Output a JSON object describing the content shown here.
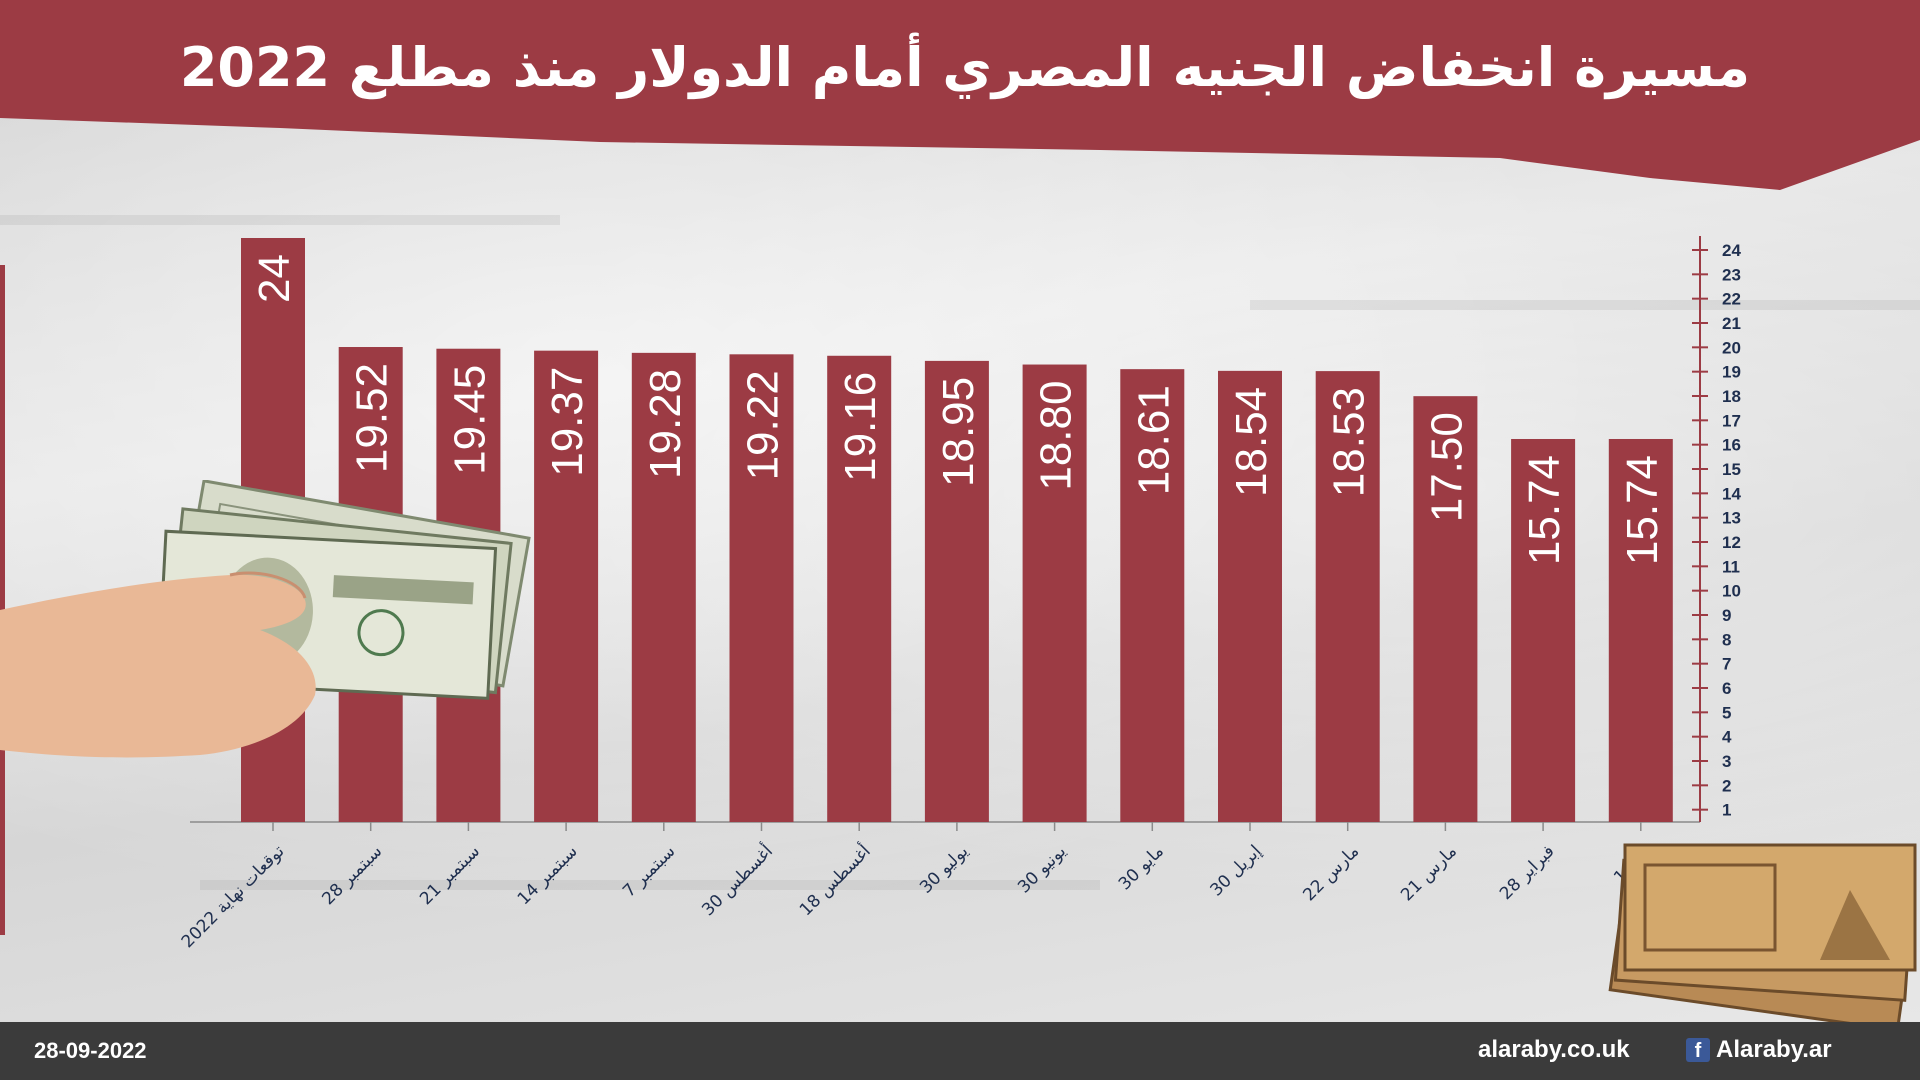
{
  "header": {
    "title": "مسيرة انخفاض الجنيه المصري أمام الدولار منذ مطلع 2022"
  },
  "footer": {
    "date": "28-09-2022",
    "site": "alaraby.co.uk",
    "facebook_handle": "Alaraby.ar"
  },
  "colors": {
    "bar": "#9c3b44",
    "banner": "#9c3b44",
    "footer": "#3b3b3b",
    "label_text": "#1f2f4f"
  },
  "icons": [
    "hand-with-dollars-image",
    "egyptian-pound-notes-image",
    "facebook-icon"
  ],
  "chart_data": {
    "type": "bar",
    "title": "مسيرة انخفاض الجنيه المصري أمام الدولار منذ مطلع 2022",
    "categories": [
      "توقعات نهاية 2022",
      "28 سبتمبر",
      "21 سبتمبر",
      "14 سبتمبر",
      "7 سبتمبر",
      "30 أغسطس",
      "18 أغسطس",
      "30 يوليو",
      "30 يونيو",
      "30 مايو",
      "30 إبريل",
      "22 مارس",
      "21 مارس",
      "28 فبراير",
      "1 يناير"
    ],
    "values": [
      24,
      19.52,
      19.45,
      19.37,
      19.28,
      19.22,
      19.16,
      18.95,
      18.8,
      18.61,
      18.54,
      18.53,
      17.5,
      15.74,
      15.74
    ],
    "value_labels": [
      "24",
      "19.52",
      "19.45",
      "19.37",
      "19.28",
      "19.22",
      "19.16",
      "18.95",
      "18.80",
      "18.61",
      "18.54",
      "18.53",
      "17.50",
      "15.74",
      "15.74"
    ],
    "ylim": [
      0,
      24
    ],
    "yticks": [
      1,
      2,
      3,
      4,
      5,
      6,
      7,
      8,
      9,
      10,
      11,
      12,
      13,
      14,
      15,
      16,
      17,
      18,
      19,
      20,
      21,
      22,
      23,
      24
    ],
    "yaxis_position": "right",
    "xlabel": "",
    "ylabel": "",
    "grid": false,
    "legend": "none"
  }
}
